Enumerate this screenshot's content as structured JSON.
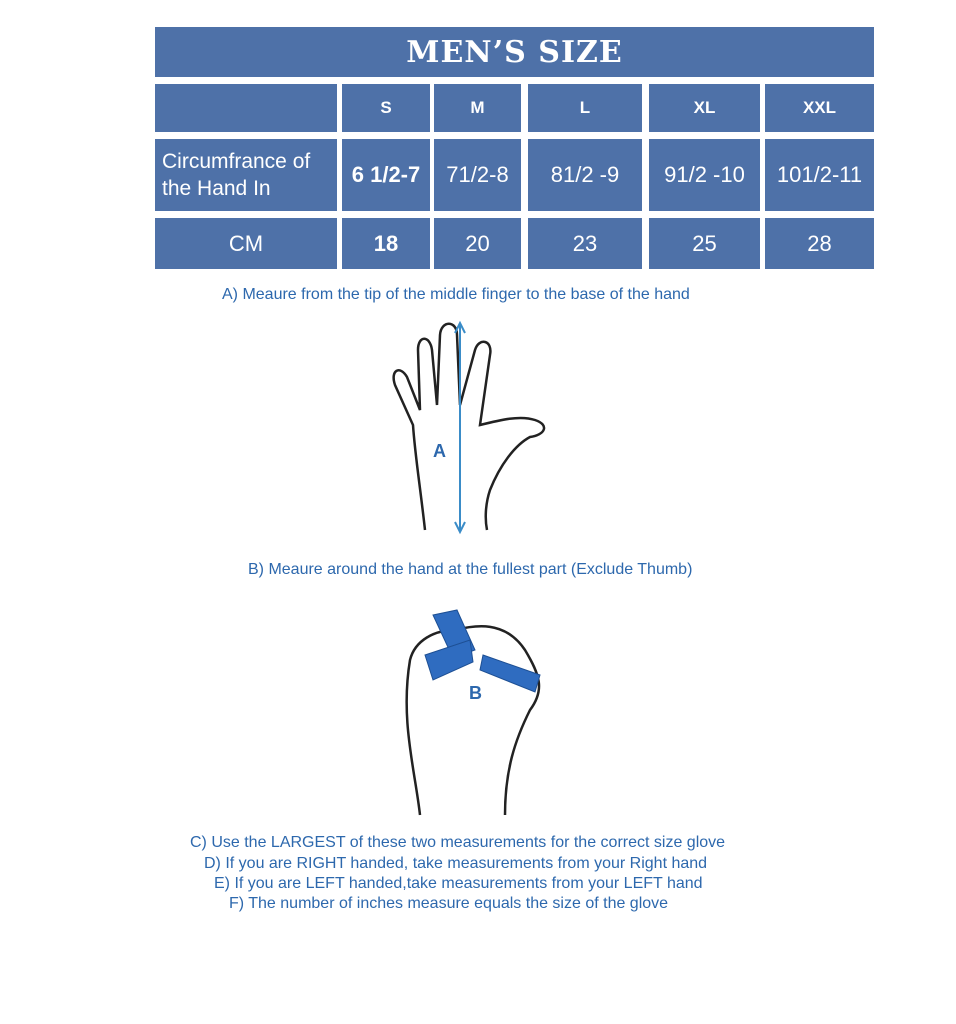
{
  "title": "MEN’S SIZE",
  "sizes": [
    "S",
    "M",
    "L",
    "XL",
    "XXL"
  ],
  "row_inches": {
    "label": "Circumfrance of the Hand In",
    "values": [
      "6 1/2-7",
      "71/2-8",
      "81/2 -9",
      "91/2 -10",
      "101/2-11"
    ]
  },
  "row_cm": {
    "label": "CM",
    "values": [
      "18",
      "20",
      "23",
      "25",
      "28"
    ]
  },
  "instructions": {
    "a": "A) Meaure from the tip of the middle finger to the base of the hand",
    "a_label": "A",
    "b": "B) Meaure around the hand at the fullest part (Exclude Thumb)",
    "b_label": "B",
    "c": "C) Use the LARGEST of these two measurements for the correct size glove",
    "d": "D) If you are RIGHT handed, take measurements from your Right hand",
    "e": "E) If you are LEFT handed,take measurements from your LEFT hand",
    "f": "F) The number of inches measure equals the size of the glove"
  },
  "colors": {
    "table": "#4e71a8",
    "text": "#2d68ad"
  }
}
